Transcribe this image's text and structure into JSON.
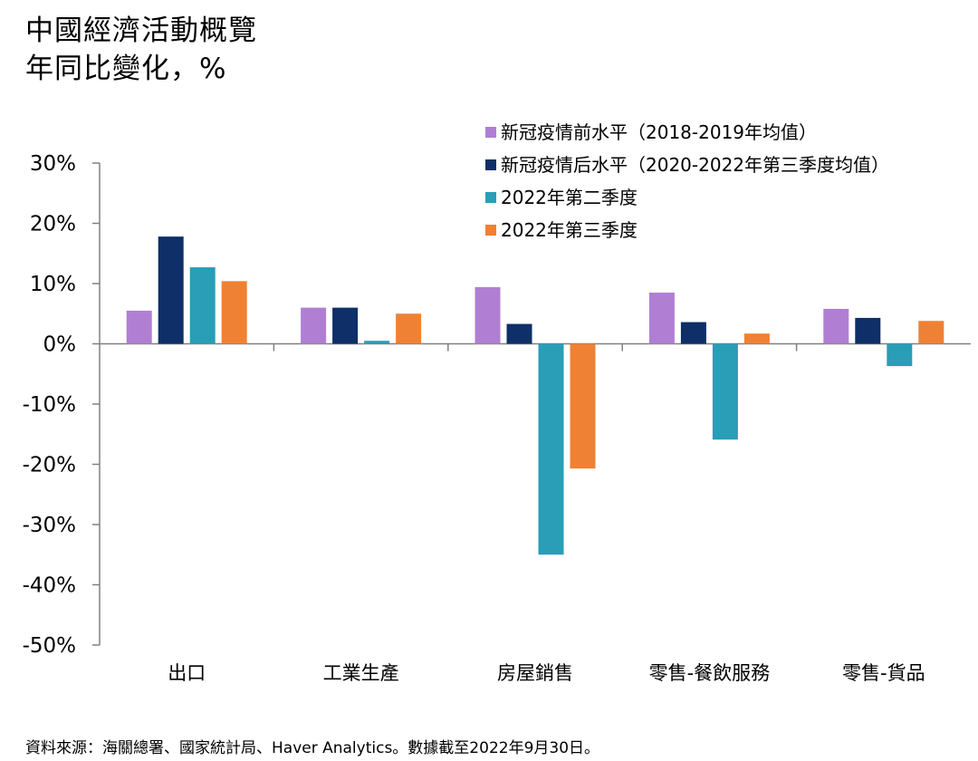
{
  "header": {
    "title": "中國經濟活動概覽",
    "subtitle": "年同比變化，%"
  },
  "footer": {
    "source": "資料來源：海關總署、國家統計局、Haver Analytics。數據截至2022年9月30日。"
  },
  "chart_data": {
    "type": "bar",
    "title": "中國經濟活動概覽",
    "subtitle": "年同比變化，%",
    "categories": [
      "出口",
      "工業生產",
      "房屋銷售",
      "零售-餐飲服務",
      "零售-貨品"
    ],
    "series": [
      {
        "name": "新冠疫情前水平（2018-2019年均值）",
        "color": "#B07FD3",
        "values": [
          5.5,
          6.0,
          9.4,
          8.5,
          5.8
        ]
      },
      {
        "name": "新冠疫情后水平（2020-2022年第三季度均值）",
        "color": "#0E2F67",
        "values": [
          17.8,
          6.0,
          3.3,
          3.6,
          4.3
        ]
      },
      {
        "name": "2022年第二季度",
        "color": "#2A9DB7",
        "values": [
          12.7,
          0.5,
          -35.0,
          -15.9,
          -3.7
        ]
      },
      {
        "name": "2022年第三季度",
        "color": "#EF8134",
        "values": [
          10.4,
          5.0,
          -20.7,
          1.7,
          3.8
        ]
      }
    ],
    "ylim": [
      -50,
      30
    ],
    "yticks": [
      30,
      20,
      10,
      0,
      -10,
      -20,
      -30,
      -40,
      -50
    ],
    "ytick_labels": [
      "30%",
      "20%",
      "10%",
      "0%",
      "-10%",
      "-20%",
      "-30%",
      "-40%",
      "-50%"
    ],
    "xlabel": "",
    "ylabel": "",
    "grid": false,
    "legend_position": "top-right"
  }
}
